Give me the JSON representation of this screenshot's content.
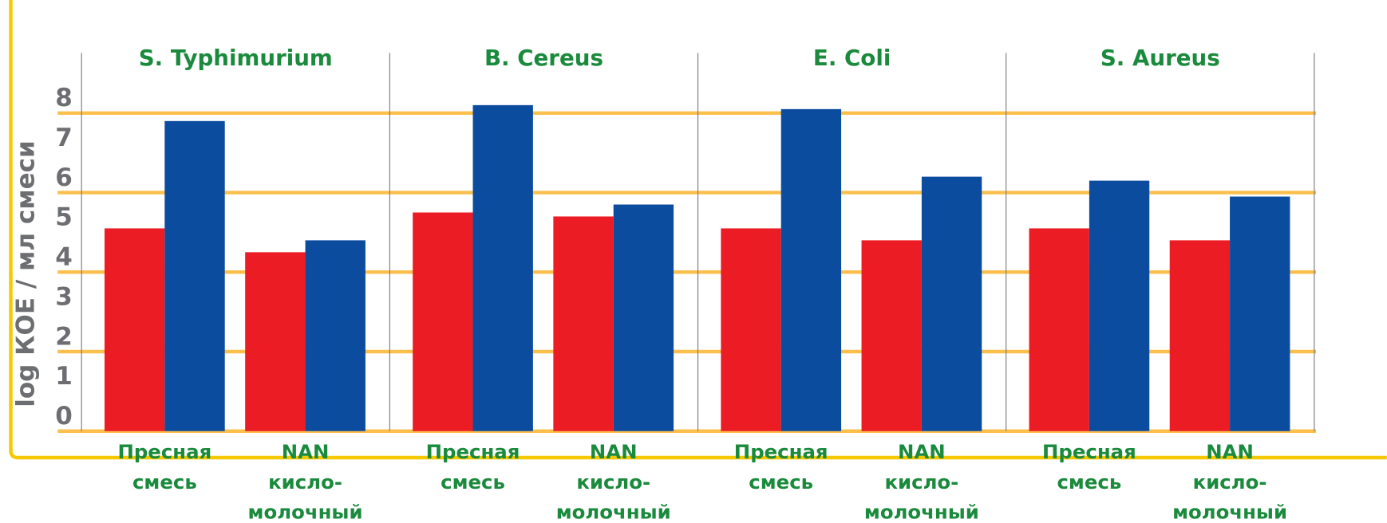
{
  "chart_data": {
    "type": "bar",
    "ylabel": "log КОЕ / мл смеси",
    "ylim": [
      0,
      8
    ],
    "yticks": [
      0,
      1,
      2,
      3,
      4,
      5,
      6,
      7,
      8
    ],
    "grid": true,
    "grid_color": "#fbbf4c",
    "panels": [
      {
        "title": "S. Typhimurium",
        "categories": [
          "Пресная\nсмесь",
          "NAN\nкисло-\nмолочный"
        ],
        "series": [
          {
            "color": "#ec1c24",
            "values": [
              5.1,
              4.5
            ]
          },
          {
            "color": "#0b4c9f",
            "values": [
              7.8,
              4.8
            ]
          }
        ]
      },
      {
        "title": "B. Cereus",
        "categories": [
          "Пресная\nсмесь",
          "NAN\nкисло-\nмолочный"
        ],
        "series": [
          {
            "color": "#ec1c24",
            "values": [
              5.5,
              5.4
            ]
          },
          {
            "color": "#0b4c9f",
            "values": [
              8.2,
              5.7
            ]
          }
        ]
      },
      {
        "title": "E. Coli",
        "categories": [
          "Пресная\nсмесь",
          "NAN\nкисло-\nмолочный"
        ],
        "series": [
          {
            "color": "#ec1c24",
            "values": [
              5.1,
              4.8
            ]
          },
          {
            "color": "#0b4c9f",
            "values": [
              8.1,
              6.4
            ]
          }
        ]
      },
      {
        "title": "S. Aureus",
        "categories": [
          "Пресная\nсмесь",
          "NAN\nкисло-\nмолочный"
        ],
        "series": [
          {
            "color": "#ec1c24",
            "values": [
              5.1,
              4.8
            ]
          },
          {
            "color": "#0b4c9f",
            "values": [
              6.3,
              5.9
            ]
          }
        ]
      }
    ]
  }
}
